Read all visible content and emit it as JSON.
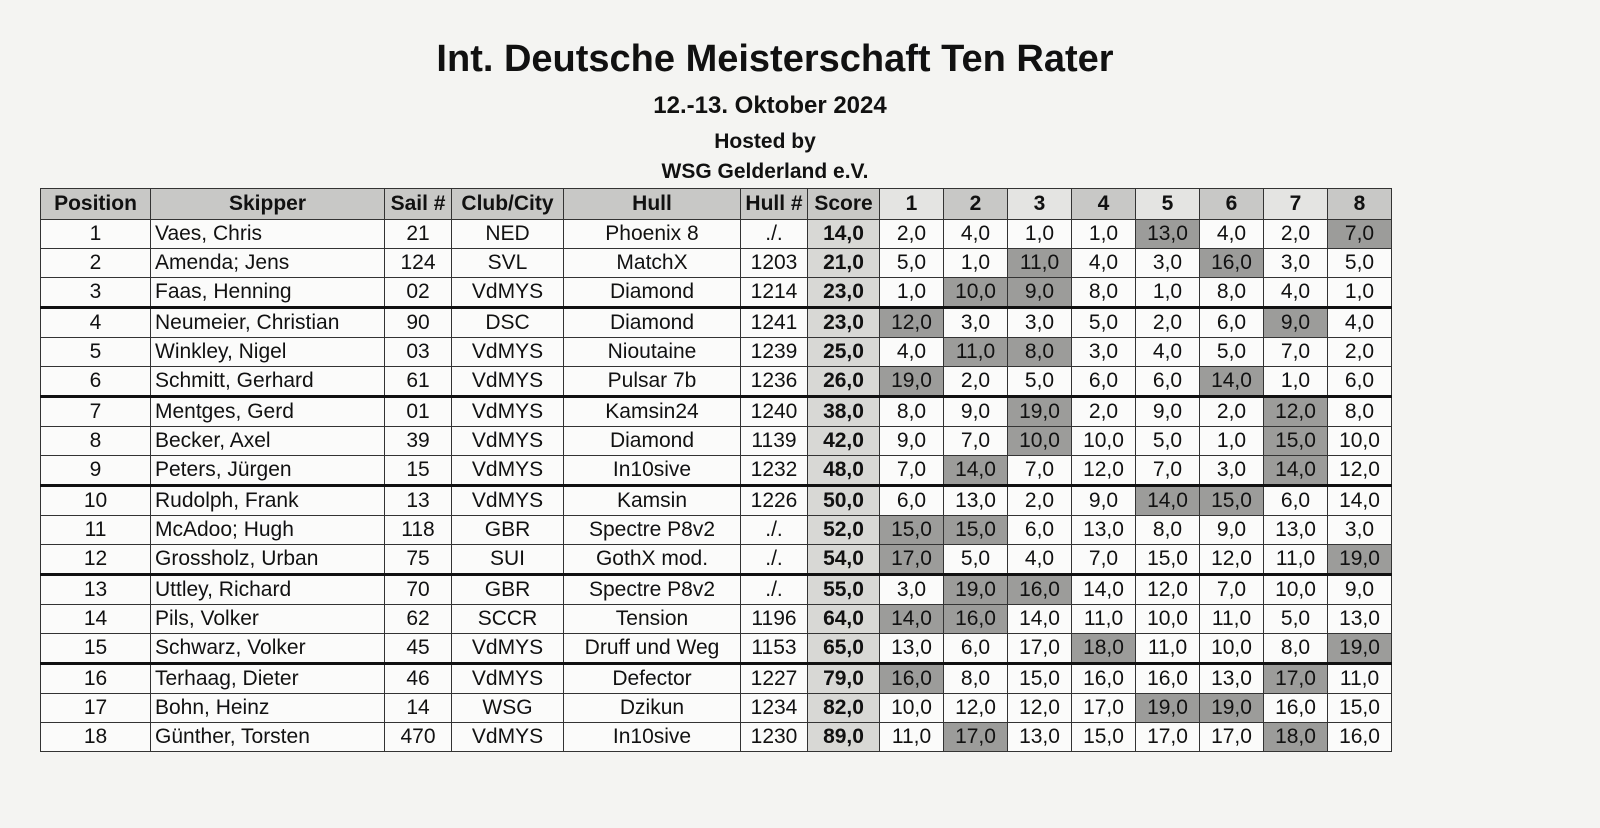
{
  "header": {
    "title": "Int. Deutsche Meisterschaft Ten Rater",
    "date": "12.-13. Oktober 2024",
    "hosted": "Hosted by",
    "host": "WSG Gelderland e.V."
  },
  "table": {
    "columns": [
      "Position",
      "Skipper",
      "Sail #",
      "Club/City",
      "Hull",
      "Hull #",
      "Score",
      "1",
      "2",
      "3",
      "4",
      "5",
      "6",
      "7",
      "8"
    ],
    "rows": [
      [
        "1",
        "Vaes, Chris",
        "21",
        "NED",
        "Phoenix 8",
        "./.",
        "14,0",
        "2,0",
        "4,0",
        "1,0",
        "1,0",
        "13,0",
        "4,0",
        "2,0",
        "7,0"
      ],
      [
        "2",
        "Amenda; Jens",
        "124",
        "SVL",
        "MatchX",
        "1203",
        "21,0",
        "5,0",
        "1,0",
        "11,0",
        "4,0",
        "3,0",
        "16,0",
        "3,0",
        "5,0"
      ],
      [
        "3",
        "Faas, Henning",
        "02",
        "VdMYS",
        "Diamond",
        "1214",
        "23,0",
        "1,0",
        "10,0",
        "9,0",
        "8,0",
        "1,0",
        "8,0",
        "4,0",
        "1,0"
      ],
      [
        "4",
        "Neumeier, Christian",
        "90",
        "DSC",
        "Diamond",
        "1241",
        "23,0",
        "12,0",
        "3,0",
        "3,0",
        "5,0",
        "2,0",
        "6,0",
        "9,0",
        "4,0"
      ],
      [
        "5",
        "Winkley, Nigel",
        "03",
        "VdMYS",
        "Nioutaine",
        "1239",
        "25,0",
        "4,0",
        "11,0",
        "8,0",
        "3,0",
        "4,0",
        "5,0",
        "7,0",
        "2,0"
      ],
      [
        "6",
        "Schmitt, Gerhard",
        "61",
        "VdMYS",
        "Pulsar 7b",
        "1236",
        "26,0",
        "19,0",
        "2,0",
        "5,0",
        "6,0",
        "6,0",
        "14,0",
        "1,0",
        "6,0"
      ],
      [
        "7",
        "Mentges, Gerd",
        "01",
        "VdMYS",
        "Kamsin24",
        "1240",
        "38,0",
        "8,0",
        "9,0",
        "19,0",
        "2,0",
        "9,0",
        "2,0",
        "12,0",
        "8,0"
      ],
      [
        "8",
        "Becker, Axel",
        "39",
        "VdMYS",
        "Diamond",
        "1139",
        "42,0",
        "9,0",
        "7,0",
        "10,0",
        "10,0",
        "5,0",
        "1,0",
        "15,0",
        "10,0"
      ],
      [
        "9",
        "Peters, Jürgen",
        "15",
        "VdMYS",
        "In10sive",
        "1232",
        "48,0",
        "7,0",
        "14,0",
        "7,0",
        "12,0",
        "7,0",
        "3,0",
        "14,0",
        "12,0"
      ],
      [
        "10",
        "Rudolph, Frank",
        "13",
        "VdMYS",
        "Kamsin",
        "1226",
        "50,0",
        "6,0",
        "13,0",
        "2,0",
        "9,0",
        "14,0",
        "15,0",
        "6,0",
        "14,0"
      ],
      [
        "11",
        "McAdoo; Hugh",
        "118",
        "GBR",
        "Spectre P8v2",
        "./.",
        "52,0",
        "15,0",
        "15,0",
        "6,0",
        "13,0",
        "8,0",
        "9,0",
        "13,0",
        "3,0"
      ],
      [
        "12",
        "Grossholz, Urban",
        "75",
        "SUI",
        "GothX mod.",
        "./.",
        "54,0",
        "17,0",
        "5,0",
        "4,0",
        "7,0",
        "15,0",
        "12,0",
        "11,0",
        "19,0"
      ],
      [
        "13",
        "Uttley, Richard",
        "70",
        "GBR",
        "Spectre P8v2",
        "./.",
        "55,0",
        "3,0",
        "19,0",
        "16,0",
        "14,0",
        "12,0",
        "7,0",
        "10,0",
        "9,0"
      ],
      [
        "14",
        "Pils, Volker",
        "62",
        "SCCR",
        "Tension",
        "1196",
        "64,0",
        "14,0",
        "16,0",
        "14,0",
        "11,0",
        "10,0",
        "11,0",
        "5,0",
        "13,0"
      ],
      [
        "15",
        "Schwarz, Volker",
        "45",
        "VdMYS",
        "Druff und Weg",
        "1153",
        "65,0",
        "13,0",
        "6,0",
        "17,0",
        "18,0",
        "11,0",
        "10,0",
        "8,0",
        "19,0"
      ],
      [
        "16",
        "Terhaag, Dieter",
        "46",
        "VdMYS",
        "Defector",
        "1227",
        "79,0",
        "16,0",
        "8,0",
        "15,0",
        "16,0",
        "16,0",
        "13,0",
        "17,0",
        "11,0"
      ],
      [
        "17",
        "Bohn, Heinz",
        "14",
        "WSG",
        "Dzikun",
        "1234",
        "82,0",
        "10,0",
        "12,0",
        "12,0",
        "17,0",
        "19,0",
        "19,0",
        "16,0",
        "15,0"
      ],
      [
        "18",
        "Günther, Torsten",
        "470",
        "VdMYS",
        "In10sive",
        "1230",
        "89,0",
        "11,0",
        "17,0",
        "13,0",
        "15,0",
        "17,0",
        "17,0",
        "18,0",
        "16,0"
      ]
    ],
    "shaded_cells": [
      [
        11,
        14
      ],
      [
        9,
        12
      ],
      [
        8,
        9
      ],
      [
        7,
        13
      ],
      [
        8,
        9
      ],
      [
        7,
        12
      ],
      [
        9,
        13
      ],
      [
        9,
        13
      ],
      [
        8,
        13
      ],
      [
        11,
        12
      ],
      [
        7,
        8
      ],
      [
        7,
        14
      ],
      [
        8,
        9
      ],
      [
        7,
        8
      ],
      [
        10,
        14
      ],
      [
        7,
        13
      ],
      [
        11,
        12
      ],
      [
        8,
        13
      ]
    ]
  }
}
